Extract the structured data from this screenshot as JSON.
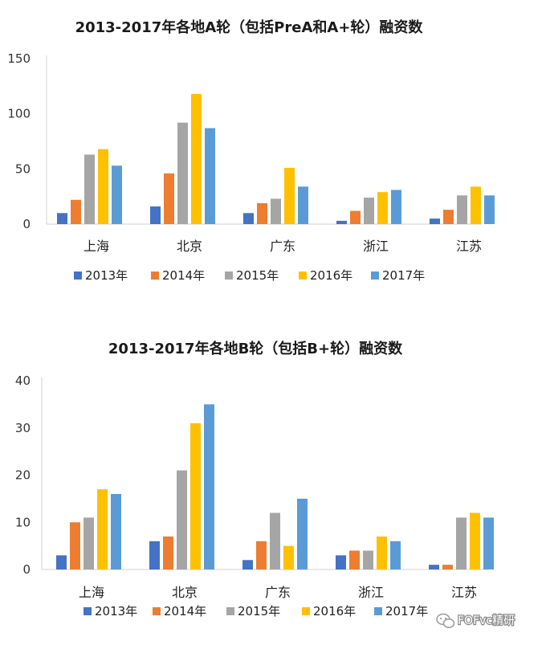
{
  "chart_data": [
    {
      "type": "bar",
      "title": "2013-2017年各地A轮（包括PreA和A+轮）融资数",
      "categories": [
        "上海",
        "北京",
        "广东",
        "浙江",
        "江苏"
      ],
      "ylim": [
        0,
        150
      ],
      "yticks": [
        0,
        50,
        100,
        150
      ],
      "grid": false,
      "legend": "bottom",
      "series": [
        {
          "name": "2013年",
          "color": "#4472C4",
          "values": [
            10,
            16,
            10,
            3,
            5
          ]
        },
        {
          "name": "2014年",
          "color": "#ED7D31",
          "values": [
            22,
            46,
            19,
            12,
            13
          ]
        },
        {
          "name": "2015年",
          "color": "#A5A5A5",
          "values": [
            63,
            92,
            23,
            24,
            26
          ]
        },
        {
          "name": "2016年",
          "color": "#FFC000",
          "values": [
            68,
            118,
            51,
            29,
            34
          ]
        },
        {
          "name": "2017年",
          "color": "#5B9BD5",
          "values": [
            53,
            87,
            34,
            31,
            26
          ]
        }
      ]
    },
    {
      "type": "bar",
      "title": "2013-2017年各地B轮（包括B+轮）融资数",
      "categories": [
        "上海",
        "北京",
        "广东",
        "浙江",
        "江苏"
      ],
      "ylim": [
        0,
        40
      ],
      "yticks": [
        0,
        10,
        20,
        30,
        40
      ],
      "grid": false,
      "legend": "bottom",
      "series": [
        {
          "name": "2013年",
          "color": "#4472C4",
          "values": [
            3,
            6,
            2,
            3,
            1
          ]
        },
        {
          "name": "2014年",
          "color": "#ED7D31",
          "values": [
            10,
            7,
            6,
            4,
            1
          ]
        },
        {
          "name": "2015年",
          "color": "#A5A5A5",
          "values": [
            11,
            21,
            12,
            4,
            11
          ]
        },
        {
          "name": "2016年",
          "color": "#FFC000",
          "values": [
            17,
            31,
            5,
            7,
            12
          ]
        },
        {
          "name": "2017年",
          "color": "#5B9BD5",
          "values": [
            16,
            35,
            15,
            6,
            11
          ]
        }
      ]
    }
  ],
  "watermark": {
    "text": "FOFvc精研",
    "icon": "wechat-icon"
  }
}
